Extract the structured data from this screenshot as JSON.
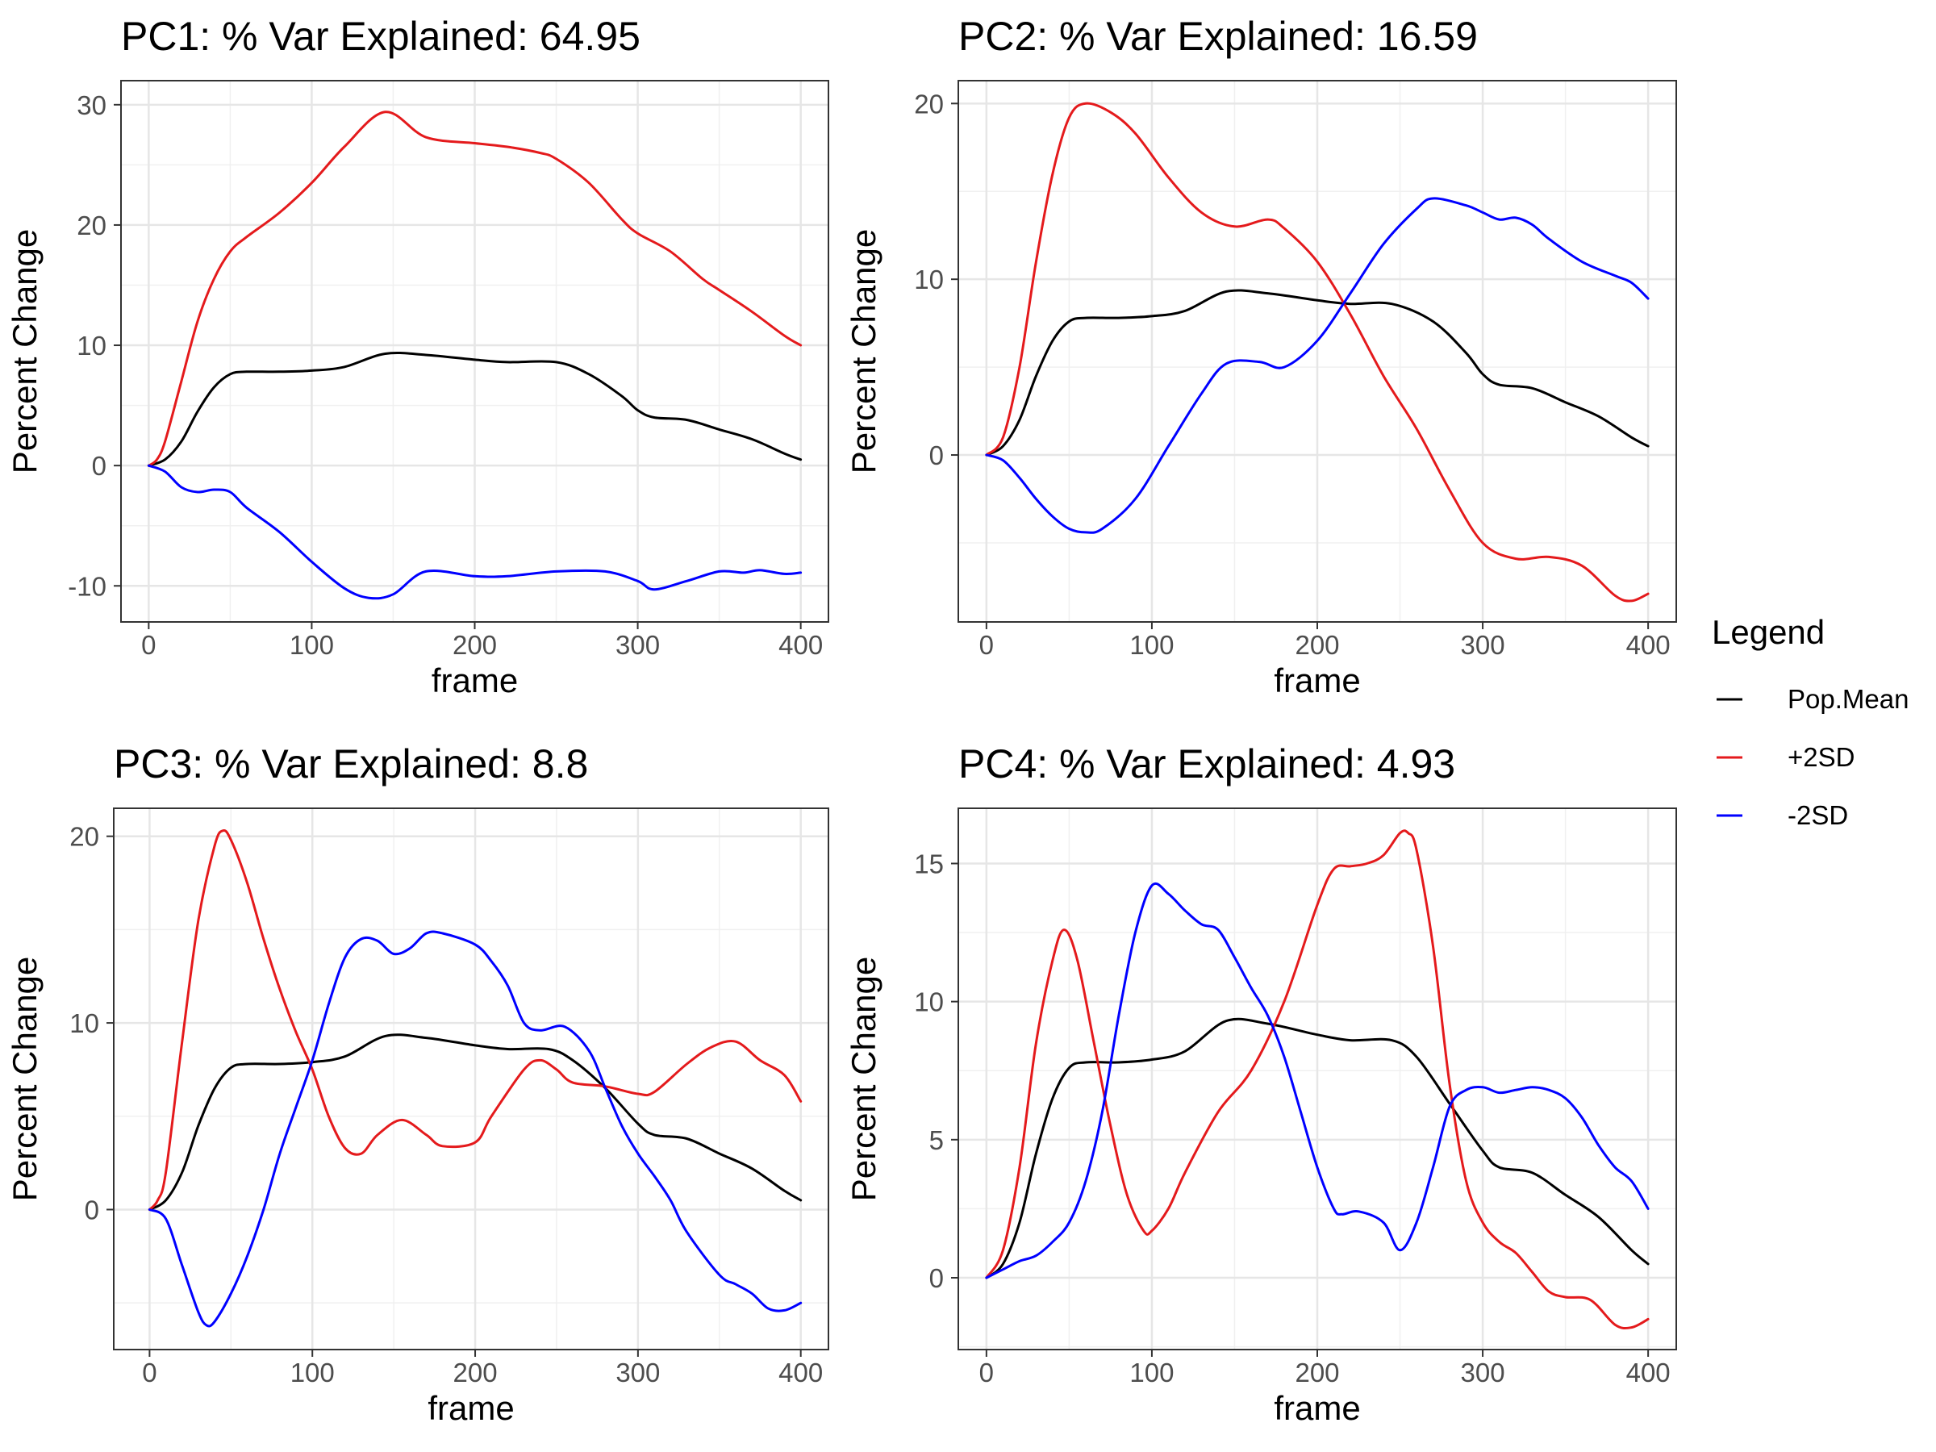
{
  "legend": {
    "title": "Legend",
    "items": [
      {
        "label": "Pop.Mean",
        "color": "#000000"
      },
      {
        "label": "+2SD",
        "color": "#e41a1c"
      },
      {
        "label": "-2SD",
        "color": "#0000ff"
      }
    ]
  },
  "chart_data": [
    {
      "type": "line",
      "title": "PC1: % Var Explained: 64.95",
      "xlabel": "frame",
      "ylabel": "Percent Change",
      "xlim": [
        -17,
        417
      ],
      "ylim": [
        -13,
        32
      ],
      "xticks": [
        0,
        100,
        200,
        300,
        400
      ],
      "yticks": [
        -10,
        0,
        10,
        20,
        30
      ],
      "ytick_labels": [
        "-10",
        "0",
        "10",
        "20",
        "30"
      ],
      "grid": true,
      "series": [
        {
          "name": "Pop.Mean",
          "color": "#000000",
          "x": [
            0,
            10,
            20,
            30,
            40,
            50,
            60,
            80,
            100,
            120,
            145,
            170,
            200,
            220,
            250,
            270,
            290,
            300,
            310,
            330,
            350,
            370,
            390,
            400
          ],
          "y": [
            0,
            0.5,
            2,
            4.5,
            6.5,
            7.6,
            7.8,
            7.8,
            7.9,
            8.2,
            9.3,
            9.2,
            8.8,
            8.6,
            8.6,
            7.6,
            5.8,
            4.6,
            4.0,
            3.8,
            3.0,
            2.2,
            1.0,
            0.5
          ]
        },
        {
          "name": "+2SD",
          "color": "#e41a1c",
          "x": [
            0,
            5,
            10,
            20,
            30,
            40,
            50,
            60,
            80,
            100,
            120,
            145,
            170,
            200,
            220,
            240,
            250,
            270,
            290,
            300,
            320,
            340,
            350,
            370,
            390,
            400
          ],
          "y": [
            0,
            0.5,
            2,
            7,
            12,
            15.5,
            17.8,
            19,
            21,
            23.5,
            26.5,
            29.4,
            27.3,
            26.8,
            26.5,
            26,
            25.5,
            23.5,
            20.5,
            19.3,
            17.8,
            15.5,
            14.6,
            12.8,
            10.8,
            10.0
          ]
        },
        {
          "name": "-2SD",
          "color": "#0000ff",
          "x": [
            0,
            10,
            20,
            30,
            40,
            50,
            60,
            80,
            100,
            120,
            135,
            150,
            170,
            200,
            220,
            250,
            280,
            300,
            310,
            330,
            350,
            365,
            375,
            390,
            400
          ],
          "y": [
            0,
            -0.5,
            -1.8,
            -2.2,
            -2.0,
            -2.2,
            -3.5,
            -5.5,
            -8,
            -10.2,
            -11,
            -10.7,
            -8.8,
            -9.2,
            -9.2,
            -8.8,
            -8.8,
            -9.6,
            -10.3,
            -9.6,
            -8.8,
            -8.9,
            -8.7,
            -9.0,
            -8.9
          ]
        }
      ]
    },
    {
      "type": "line",
      "title": "PC2: % Var Explained: 16.59",
      "xlabel": "frame",
      "ylabel": "Percent Change",
      "xlim": [
        -17,
        417
      ],
      "ylim": [
        -9.5,
        21.3
      ],
      "xticks": [
        0,
        100,
        200,
        300,
        400
      ],
      "yticks": [
        0,
        10,
        20
      ],
      "ytick_labels": [
        "0",
        "10",
        "20"
      ],
      "grid": true,
      "series": [
        {
          "name": "Pop.Mean",
          "color": "#000000",
          "x": [
            0,
            10,
            20,
            30,
            40,
            50,
            60,
            80,
            100,
            120,
            145,
            170,
            200,
            220,
            245,
            270,
            290,
            300,
            310,
            330,
            350,
            370,
            390,
            400
          ],
          "y": [
            0,
            0.5,
            2,
            4.5,
            6.5,
            7.6,
            7.8,
            7.8,
            7.9,
            8.2,
            9.3,
            9.2,
            8.8,
            8.6,
            8.6,
            7.6,
            5.8,
            4.6,
            4.0,
            3.8,
            3.0,
            2.2,
            1.0,
            0.5
          ]
        },
        {
          "name": "+2SD",
          "color": "#e41a1c",
          "x": [
            0,
            10,
            20,
            30,
            40,
            50,
            60,
            75,
            90,
            110,
            130,
            150,
            170,
            180,
            200,
            220,
            240,
            260,
            280,
            300,
            320,
            340,
            360,
            380,
            390,
            400
          ],
          "y": [
            0,
            1,
            5,
            11,
            16,
            19.2,
            20,
            19.5,
            18.3,
            15.8,
            13.8,
            13,
            13.4,
            12.9,
            11,
            8,
            4.5,
            1.5,
            -2,
            -5,
            -5.9,
            -5.8,
            -6.3,
            -8,
            -8.3,
            -7.9
          ]
        },
        {
          "name": "-2SD",
          "color": "#0000ff",
          "x": [
            0,
            10,
            20,
            30,
            40,
            50,
            60,
            70,
            90,
            110,
            130,
            145,
            165,
            180,
            200,
            220,
            240,
            260,
            270,
            290,
            300,
            310,
            320,
            330,
            340,
            360,
            380,
            390,
            400
          ],
          "y": [
            0,
            -0.3,
            -1.3,
            -2.5,
            -3.5,
            -4.2,
            -4.4,
            -4.2,
            -2.5,
            0.5,
            3.5,
            5.2,
            5.3,
            5,
            6.5,
            9.2,
            12,
            14,
            14.6,
            14.2,
            13.8,
            13.4,
            13.5,
            13.1,
            12.3,
            11,
            10.2,
            9.8,
            8.9
          ]
        }
      ]
    },
    {
      "type": "line",
      "title": "PC3: % Var Explained: 8.8",
      "xlabel": "frame",
      "ylabel": "Percent Change",
      "xlim": [
        -22,
        417
      ],
      "ylim": [
        -7.5,
        21.5
      ],
      "xticks": [
        0,
        100,
        200,
        300,
        400
      ],
      "yticks": [
        0,
        10,
        20
      ],
      "ytick_labels": [
        "0",
        "10",
        "20"
      ],
      "grid": true,
      "series": [
        {
          "name": "Pop.Mean",
          "color": "#000000",
          "x": [
            0,
            10,
            20,
            30,
            40,
            50,
            60,
            80,
            100,
            120,
            145,
            170,
            200,
            220,
            245,
            260,
            280,
            300,
            310,
            330,
            350,
            370,
            390,
            400
          ],
          "y": [
            0,
            0.5,
            2,
            4.5,
            6.5,
            7.6,
            7.8,
            7.8,
            7.9,
            8.2,
            9.3,
            9.2,
            8.8,
            8.6,
            8.6,
            8.0,
            6.5,
            4.6,
            4.0,
            3.8,
            3.0,
            2.2,
            1.0,
            0.5
          ]
        },
        {
          "name": "+2SD",
          "color": "#e41a1c",
          "x": [
            0,
            5,
            10,
            20,
            30,
            40,
            45,
            50,
            60,
            70,
            80,
            90,
            100,
            110,
            120,
            130,
            140,
            155,
            170,
            180,
            200,
            210,
            230,
            240,
            250,
            260,
            280,
            300,
            310,
            330,
            345,
            360,
            375,
            390,
            400
          ],
          "y": [
            0,
            0.5,
            2,
            9,
            15.5,
            19.5,
            20.3,
            19.8,
            17.5,
            14.5,
            11.8,
            9.5,
            7.5,
            5,
            3.3,
            3,
            4,
            4.8,
            4,
            3.4,
            3.6,
            5,
            7.5,
            8,
            7.5,
            6.8,
            6.6,
            6.2,
            6.3,
            7.8,
            8.7,
            9,
            8,
            7.2,
            5.8
          ]
        },
        {
          "name": "-2SD",
          "color": "#0000ff",
          "x": [
            0,
            10,
            20,
            30,
            35,
            40,
            50,
            60,
            70,
            80,
            90,
            100,
            110,
            120,
            130,
            140,
            150,
            160,
            170,
            180,
            200,
            210,
            220,
            230,
            240,
            255,
            270,
            280,
            290,
            300,
            310,
            320,
            330,
            350,
            360,
            370,
            380,
            390,
            400
          ],
          "y": [
            0,
            -0.5,
            -3,
            -5.5,
            -6.2,
            -6,
            -4.5,
            -2.5,
            0,
            3,
            5.5,
            8,
            11,
            13.5,
            14.5,
            14.4,
            13.7,
            14,
            14.8,
            14.8,
            14.2,
            13.3,
            12,
            10,
            9.6,
            9.8,
            8.5,
            6.5,
            4.5,
            3,
            1.8,
            0.5,
            -1.2,
            -3.5,
            -4,
            -4.5,
            -5.3,
            -5.4,
            -5.0
          ]
        }
      ]
    },
    {
      "type": "line",
      "title": "PC4: % Var Explained: 4.93",
      "xlabel": "frame",
      "ylabel": "Percent Change",
      "xlim": [
        -17,
        417
      ],
      "ylim": [
        -2.6,
        17
      ],
      "xticks": [
        0,
        100,
        200,
        300,
        400
      ],
      "yticks": [
        0,
        5,
        10,
        15
      ],
      "ytick_labels": [
        "0",
        "5",
        "10",
        "15"
      ],
      "grid": true,
      "series": [
        {
          "name": "Pop.Mean",
          "color": "#000000",
          "x": [
            0,
            10,
            20,
            30,
            40,
            50,
            60,
            80,
            100,
            120,
            145,
            170,
            200,
            220,
            245,
            260,
            280,
            300,
            310,
            330,
            350,
            370,
            390,
            400
          ],
          "y": [
            0,
            0.5,
            2,
            4.5,
            6.5,
            7.6,
            7.8,
            7.8,
            7.9,
            8.2,
            9.3,
            9.2,
            8.8,
            8.6,
            8.6,
            8.0,
            6.3,
            4.6,
            4.0,
            3.8,
            3.0,
            2.2,
            1.0,
            0.5
          ]
        },
        {
          "name": "+2SD",
          "color": "#e41a1c",
          "x": [
            0,
            10,
            20,
            30,
            40,
            47,
            55,
            65,
            75,
            85,
            95,
            100,
            110,
            120,
            140,
            160,
            180,
            200,
            210,
            220,
            230,
            240,
            250,
            255,
            260,
            270,
            280,
            290,
            300,
            310,
            320,
            330,
            340,
            350,
            365,
            380,
            390,
            400
          ],
          "y": [
            0,
            1,
            4,
            8.5,
            11.5,
            12.6,
            11.5,
            8.5,
            5.5,
            3,
            1.7,
            1.7,
            2.5,
            3.8,
            6,
            7.5,
            10,
            13.5,
            14.8,
            14.9,
            15,
            15.3,
            16.1,
            16.1,
            15.5,
            12,
            7,
            3.5,
            2,
            1.3,
            0.9,
            0.2,
            -0.5,
            -0.7,
            -0.8,
            -1.7,
            -1.8,
            -1.5
          ]
        },
        {
          "name": "-2SD",
          "color": "#0000ff",
          "x": [
            0,
            10,
            20,
            30,
            40,
            50,
            60,
            70,
            80,
            90,
            100,
            110,
            120,
            130,
            140,
            150,
            160,
            170,
            180,
            190,
            200,
            210,
            215,
            225,
            240,
            250,
            260,
            270,
            280,
            290,
            300,
            310,
            320,
            330,
            340,
            350,
            360,
            370,
            380,
            390,
            400
          ],
          "y": [
            0,
            0.3,
            0.6,
            0.8,
            1.3,
            2,
            3.5,
            6,
            9.5,
            12.5,
            14.2,
            13.9,
            13.3,
            12.8,
            12.6,
            11.6,
            10.5,
            9.5,
            8,
            6,
            4,
            2.5,
            2.3,
            2.4,
            2,
            1.0,
            2,
            4,
            6.2,
            6.8,
            6.9,
            6.7,
            6.8,
            6.9,
            6.8,
            6.5,
            5.8,
            4.8,
            4,
            3.5,
            2.5
          ]
        }
      ]
    }
  ]
}
